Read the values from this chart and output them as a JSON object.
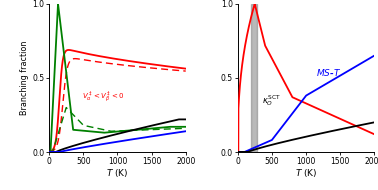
{
  "xlim": [
    0,
    2000
  ],
  "ylim": [
    0.0,
    1.0
  ],
  "yticks": [
    0.0,
    0.5,
    1.0
  ],
  "xticks": [
    0,
    500,
    1000,
    1500,
    2000
  ],
  "xlabel": "T (K)",
  "ylabel": "Branching fraction",
  "bg_color": "#ffffff",
  "left_annotation": "V^‡_α < V^‡_β < 0"
}
